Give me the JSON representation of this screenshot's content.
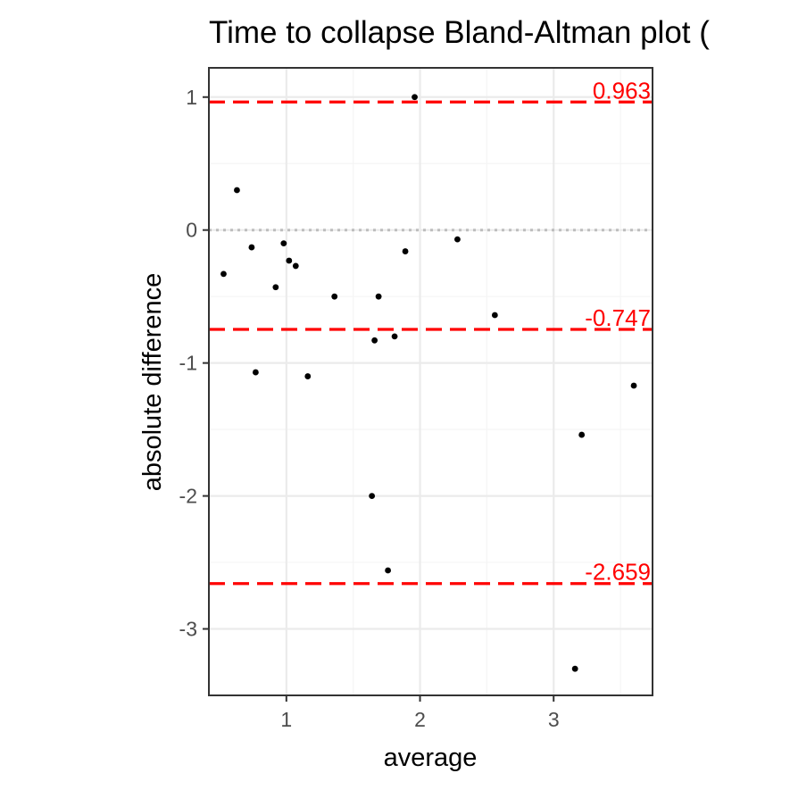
{
  "chart_data": {
    "type": "scatter",
    "title": "Time to collapse   Bland-Altman plot (",
    "xlabel": "average",
    "ylabel": "absolute difference",
    "xlim": [
      0.42,
      3.74
    ],
    "ylim": [
      -3.5,
      1.22
    ],
    "x_ticks": [
      1,
      2,
      3
    ],
    "x_minor_ticks": [
      1.5,
      2.5,
      3.5
    ],
    "y_ticks": [
      1,
      0,
      -1,
      -2,
      -3
    ],
    "y_minor_ticks": [
      0.5,
      -0.5,
      -1.5,
      -2.5
    ],
    "grid": true,
    "zero_line": 0,
    "reference_lines": [
      {
        "value": 0.963,
        "label": "0.963"
      },
      {
        "value": -0.747,
        "label": "-0.747"
      },
      {
        "value": -2.659,
        "label": "-2.659"
      }
    ],
    "points": [
      {
        "x": 0.53,
        "y": -0.33
      },
      {
        "x": 0.63,
        "y": 0.3
      },
      {
        "x": 0.74,
        "y": -0.13
      },
      {
        "x": 0.77,
        "y": -1.07
      },
      {
        "x": 0.92,
        "y": -0.43
      },
      {
        "x": 0.98,
        "y": -0.1
      },
      {
        "x": 1.02,
        "y": -0.23
      },
      {
        "x": 1.07,
        "y": -0.27
      },
      {
        "x": 1.16,
        "y": -1.1
      },
      {
        "x": 1.36,
        "y": -0.5
      },
      {
        "x": 1.64,
        "y": -2.0
      },
      {
        "x": 1.66,
        "y": -0.83
      },
      {
        "x": 1.69,
        "y": -0.5
      },
      {
        "x": 1.76,
        "y": -2.56
      },
      {
        "x": 1.81,
        "y": -0.8
      },
      {
        "x": 1.89,
        "y": -0.16
      },
      {
        "x": 1.96,
        "y": 1.0
      },
      {
        "x": 2.28,
        "y": -0.07
      },
      {
        "x": 2.56,
        "y": -0.64
      },
      {
        "x": 3.16,
        "y": -3.3
      },
      {
        "x": 3.21,
        "y": -1.54
      },
      {
        "x": 3.6,
        "y": -1.17
      }
    ],
    "colors": {
      "points": "#000000",
      "reference_lines": "#ff0000",
      "zero_line": "#bdbdbd",
      "grid_major": "#ebebeb",
      "grid_minor": "#f5f5f5",
      "panel_border": "#333333",
      "tick_label": "#4d4d4d"
    }
  }
}
